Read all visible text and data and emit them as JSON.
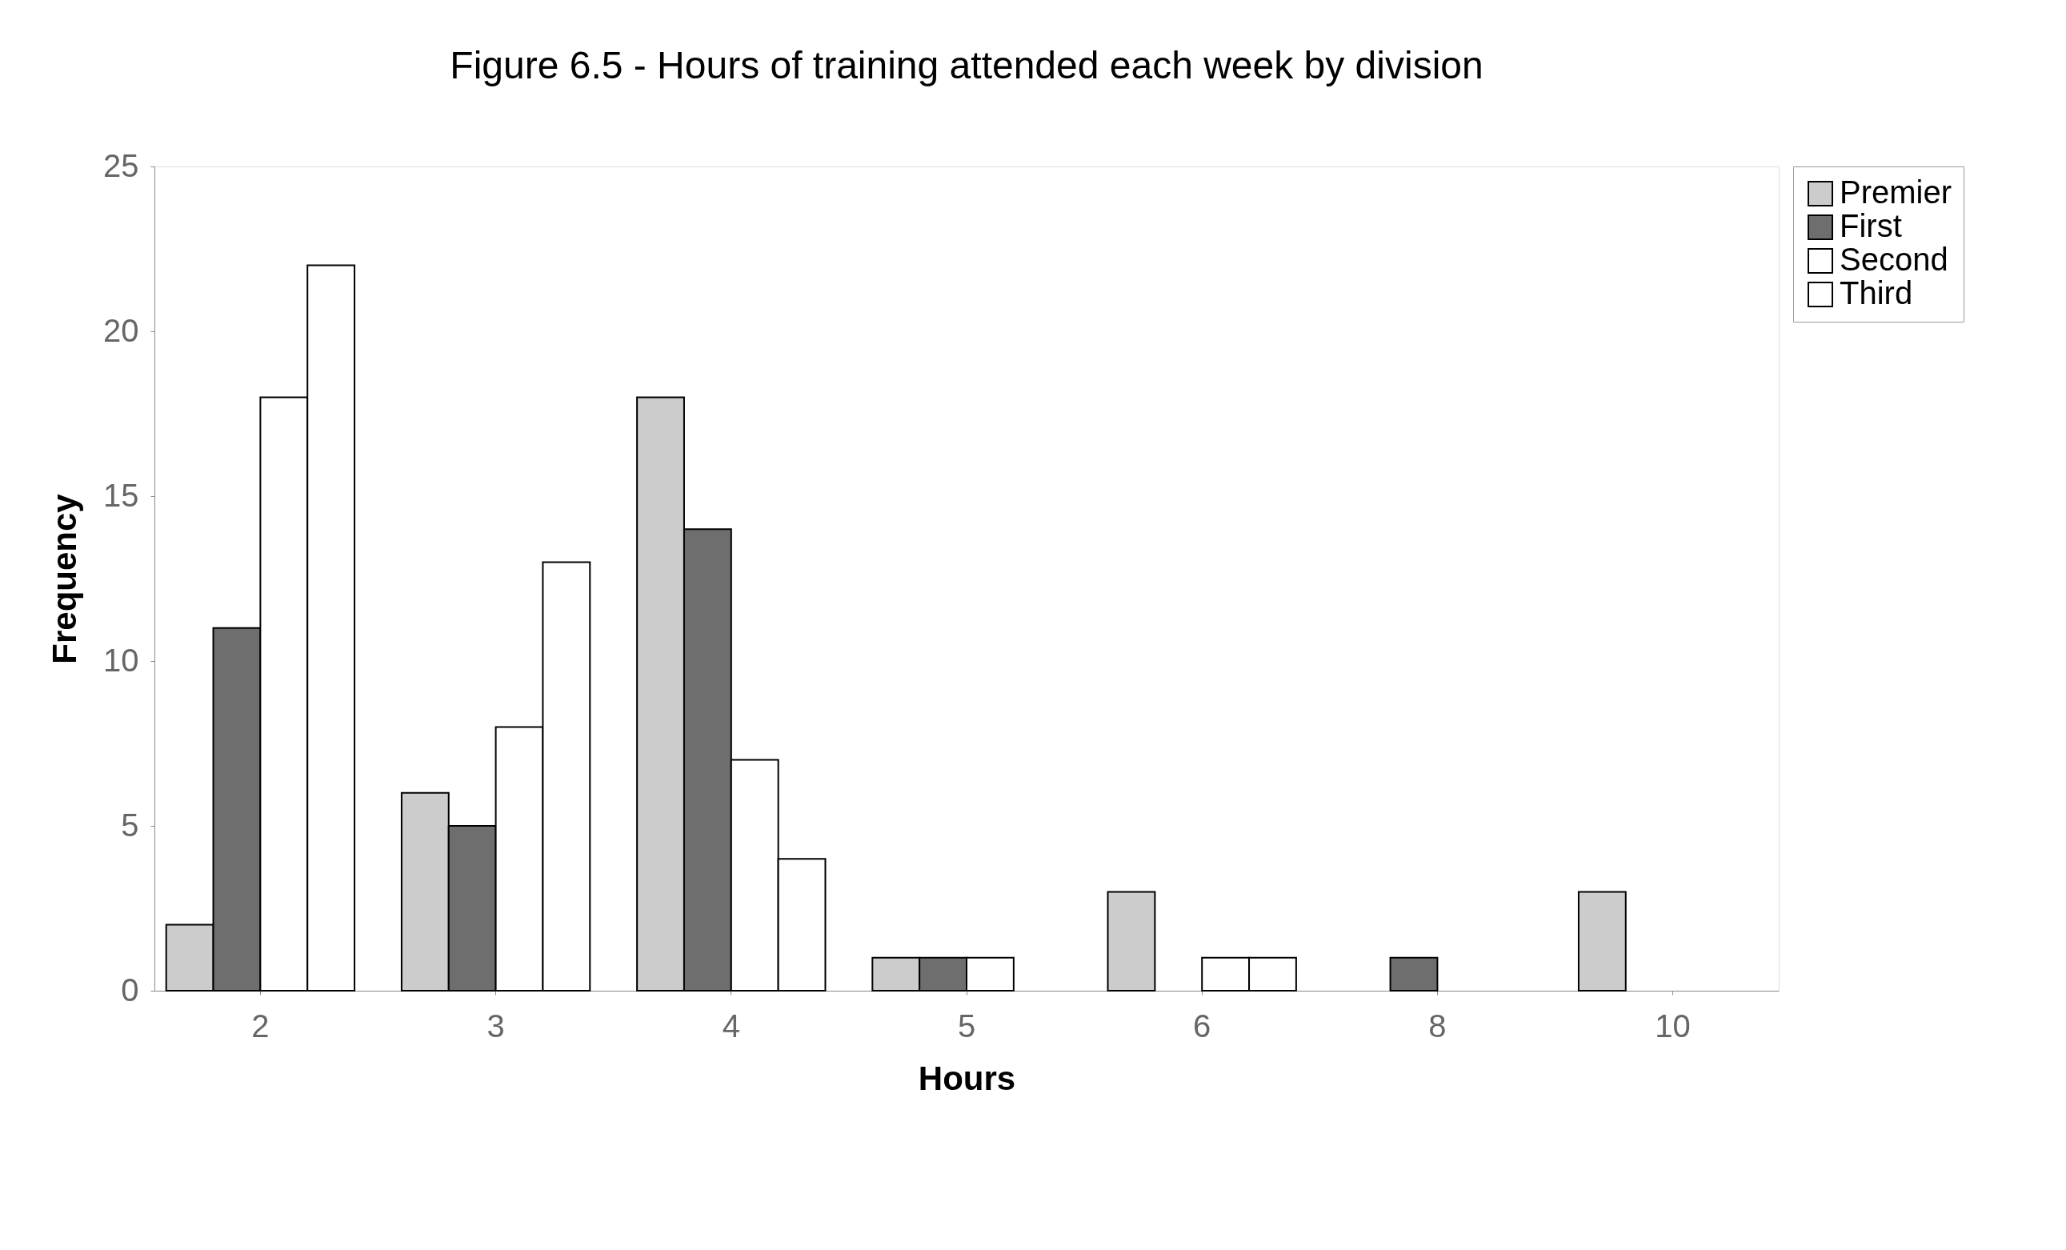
{
  "chart_data": {
    "type": "bar",
    "title": "Figure 6.5 - Hours of training attended each week by division",
    "xlabel": "Hours",
    "ylabel": "Frequency",
    "categories": [
      "2",
      "3",
      "4",
      "5",
      "6",
      "8",
      "10"
    ],
    "series": [
      {
        "name": "Premier",
        "color": "#cccccc",
        "values": [
          2,
          6,
          18,
          1,
          3,
          null,
          3
        ]
      },
      {
        "name": "First",
        "color": "#6e6e6e",
        "values": [
          11,
          5,
          14,
          1,
          null,
          1,
          null
        ]
      },
      {
        "name": "Second",
        "color": "#ffffff",
        "values": [
          18,
          8,
          7,
          1,
          1,
          null,
          null
        ]
      },
      {
        "name": "Third",
        "color": "#ffffff",
        "values": [
          22,
          13,
          4,
          null,
          1,
          null,
          null
        ]
      }
    ],
    "ylim": [
      0,
      25
    ],
    "yticks": [
      0,
      5,
      10,
      15,
      20,
      25
    ],
    "grid": false,
    "legend": "right"
  }
}
